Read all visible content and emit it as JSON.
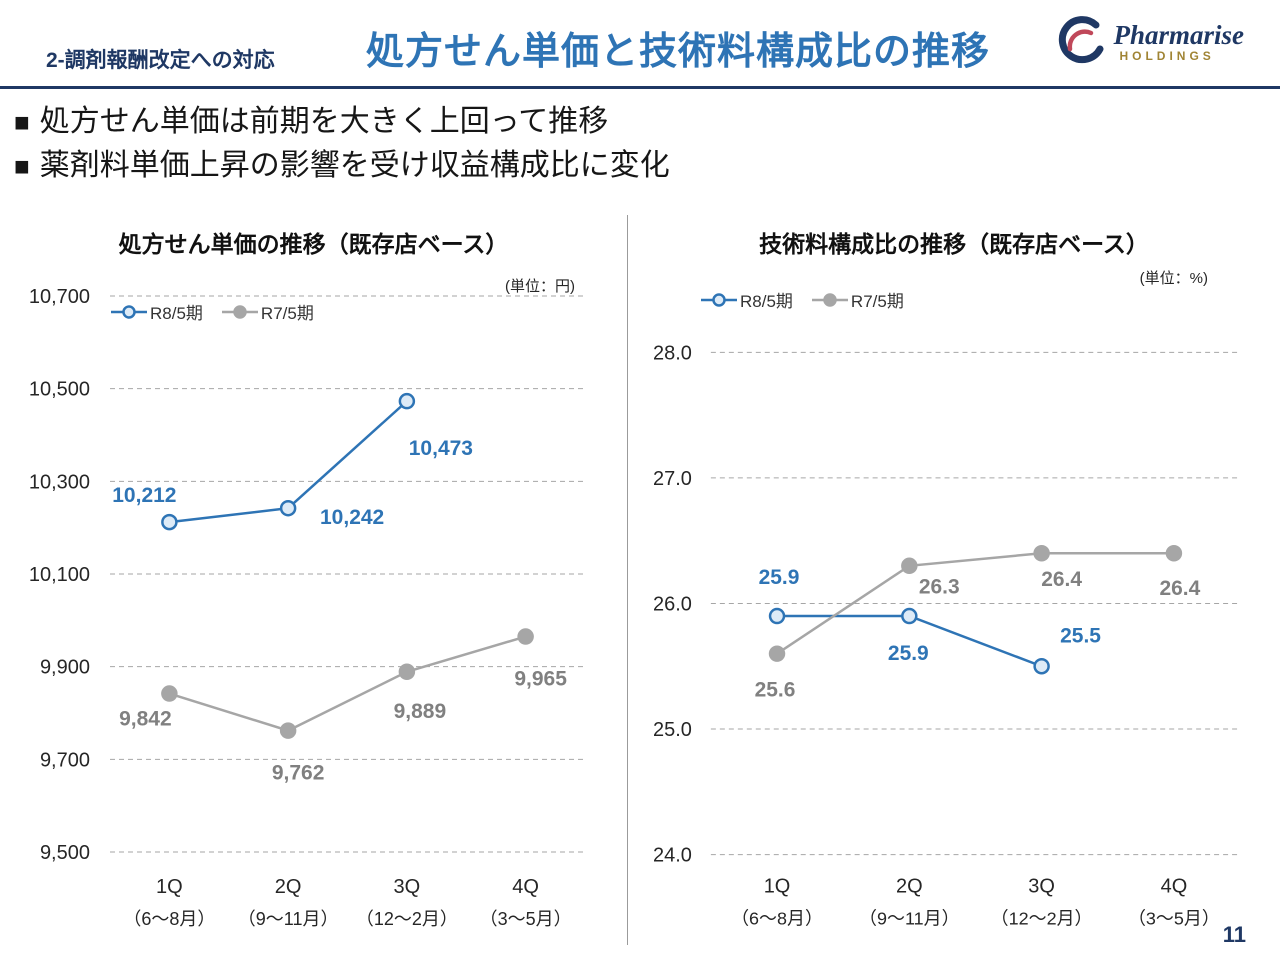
{
  "header": {
    "section_label": "2-調剤報酬改定への対応",
    "title": "処方せん単価と技術料構成比の推移",
    "logo_name": "Pharmarise",
    "logo_sub": "HOLDINGS"
  },
  "bullet_marker": "■",
  "bullets": [
    "処方せん単価は前期を大きく上回って推移",
    "薬剤料単価上昇の影響を受け収益構成比に変化"
  ],
  "page_number": "11",
  "colors": {
    "navy": "#1F3864",
    "title_blue": "#2E74B5",
    "series_blue": "#2E74B5",
    "series_gray": "#A6A6A6",
    "label_gray": "#808080",
    "grid_gray": "#A6A6A6",
    "logo_gold": "#A08434"
  },
  "chart_data": [
    {
      "type": "line",
      "title": "処方せん単価の推移（既存店ベース）",
      "unit": "(単位：円)",
      "categories": [
        "1Q",
        "2Q",
        "3Q",
        "4Q"
      ],
      "category_sublabels": [
        "（6～8月）",
        "（9～11月）",
        "（12～2月）",
        "（3～5月）"
      ],
      "ylim": [
        9500,
        10700
      ],
      "yticks": [
        9500,
        9700,
        9900,
        10100,
        10300,
        10500,
        10700
      ],
      "ytick_labels": [
        "9,500",
        "9,700",
        "9,900",
        "10,100",
        "10,300",
        "10,500",
        "10,700"
      ],
      "grid": true,
      "legend_position": "top-left",
      "series": [
        {
          "name": "R8/5期",
          "color": "#2E74B5",
          "marker_fill": "#DEEBF7",
          "label_color": "#2E74B5",
          "values": [
            10212,
            10242,
            10473,
            null
          ],
          "labels": [
            "10,212",
            "10,242",
            "10,473",
            ""
          ]
        },
        {
          "name": "R7/5期",
          "color": "#A6A6A6",
          "marker_fill": "#A6A6A6",
          "label_color": "#808080",
          "values": [
            9842,
            9762,
            9889,
            9965
          ],
          "labels": [
            "9,842",
            "9,762",
            "9,889",
            "9,965"
          ]
        }
      ]
    },
    {
      "type": "line",
      "title": "技術料構成比の推移（既存店ベース）",
      "unit": "(単位：%)",
      "categories": [
        "1Q",
        "2Q",
        "3Q",
        "4Q"
      ],
      "category_sublabels": [
        "（6～8月）",
        "（9～11月）",
        "（12～2月）",
        "（3～5月）"
      ],
      "ylim": [
        24.0,
        28.0
      ],
      "yticks": [
        24.0,
        25.0,
        26.0,
        27.0,
        28.0
      ],
      "ytick_labels": [
        "24.0",
        "25.0",
        "26.0",
        "27.0",
        "28.0"
      ],
      "grid": true,
      "legend_position": "top-left",
      "series": [
        {
          "name": "R8/5期",
          "color": "#2E74B5",
          "marker_fill": "#DEEBF7",
          "label_color": "#2E74B5",
          "values": [
            25.9,
            25.9,
            25.5,
            null
          ],
          "labels": [
            "25.9",
            "25.9",
            "25.5",
            ""
          ]
        },
        {
          "name": "R7/5期",
          "color": "#A6A6A6",
          "marker_fill": "#A6A6A6",
          "label_color": "#808080",
          "values": [
            25.6,
            26.3,
            26.4,
            26.4
          ],
          "labels": [
            "25.6",
            "26.3",
            "26.4",
            "26.4"
          ]
        }
      ]
    }
  ]
}
